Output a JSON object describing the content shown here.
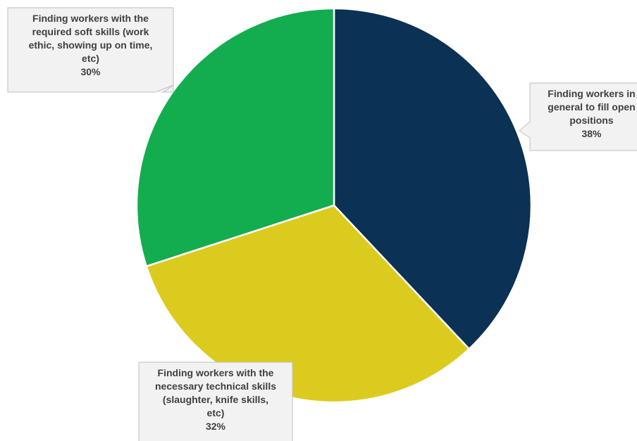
{
  "chart_data": {
    "type": "pie",
    "title": "",
    "slices": [
      {
        "label_lines": [
          "Finding workers in",
          "general to fill open",
          "positions"
        ],
        "value": 38,
        "value_label": "38%",
        "color": "#0b3154"
      },
      {
        "label_lines": [
          "Finding workers with the",
          "necessary technical skills",
          "(slaughter, knife skills,",
          "etc)"
        ],
        "value": 32,
        "value_label": "32%",
        "color": "#dccb1f"
      },
      {
        "label_lines": [
          "Finding workers with the",
          "required soft skills (work",
          "ethic, showing up on time,",
          "etc)"
        ],
        "value": 30,
        "value_label": "30%",
        "color": "#13ad4f"
      }
    ],
    "legend": "none",
    "data_labels": "callouts"
  }
}
